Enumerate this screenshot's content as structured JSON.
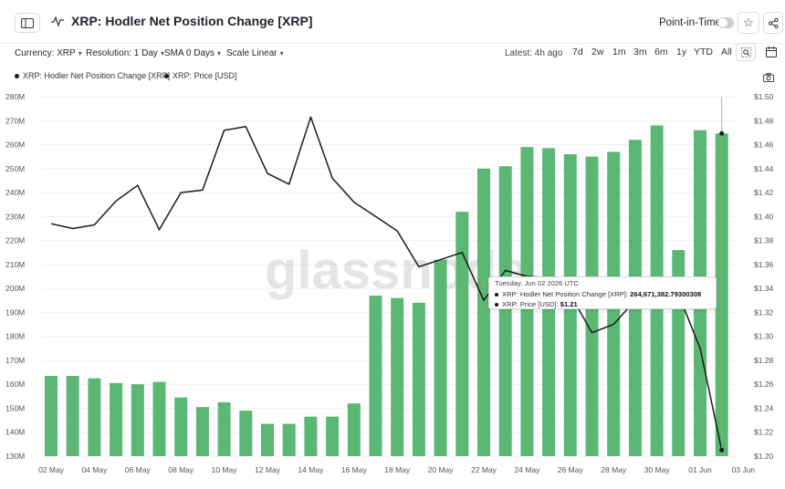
{
  "header": {
    "title": "XRP: Hodler Net Position Change [XRP]",
    "point_in_time_label": "Point-in-Time"
  },
  "toolbar": {
    "currency": "Currency: XRP",
    "resolution": "Resolution: 1 Day",
    "sma": "SMA 0 Days",
    "scale": "Scale Linear",
    "latest": "Latest: 4h ago",
    "ranges": [
      "7d",
      "2w",
      "1m",
      "3m",
      "6m",
      "1y",
      "YTD",
      "All"
    ]
  },
  "legend": {
    "items": [
      "XRP: Hodler Net Position Change [XRP]",
      "XRP: Price [USD]"
    ]
  },
  "watermark": "glassnode",
  "tooltip": {
    "date": "Tuesday, Jun 02 2026 UTC",
    "row1_label": "XRP: Hodler Net Position Change [XRP]: ",
    "row1_value": "264,671,382.79300308",
    "row2_label": "XRP: Price [USD]: ",
    "row2_value": "$1.21"
  },
  "colors": {
    "bar": "#5bb774",
    "line": "#1a1a1a",
    "grid": "#eef0f2"
  },
  "chart_data": {
    "type": "bar",
    "x": [
      "May 02",
      "May 03",
      "May 04",
      "May 05",
      "May 06",
      "May 07",
      "May 08",
      "May 09",
      "May 10",
      "May 11",
      "May 12",
      "May 13",
      "May 14",
      "May 15",
      "May 16",
      "May 17",
      "May 18",
      "May 19",
      "May 20",
      "May 21",
      "May 22",
      "May 23",
      "May 24",
      "May 25",
      "May 26",
      "May 27",
      "May 28",
      "May 29",
      "May 30",
      "May 31",
      "Jun 01",
      "Jun 02"
    ],
    "x_tick_labels": [
      "02 May",
      "04 May",
      "06 May",
      "08 May",
      "10 May",
      "12 May",
      "14 May",
      "16 May",
      "18 May",
      "20 May",
      "22 May",
      "24 May",
      "26 May",
      "28 May",
      "30 May",
      "01 Jun",
      "03 Jun"
    ],
    "series": [
      {
        "name": "XRP: Hodler Net Position Change [XRP]",
        "type": "bar",
        "axis": "left",
        "values": [
          163.5,
          163.5,
          162.5,
          160.5,
          160.0,
          161.0,
          154.5,
          150.5,
          152.5,
          149.0,
          143.5,
          143.5,
          146.5,
          146.5,
          152.0,
          197.0,
          196.0,
          194.0,
          212.0,
          232.0,
          250.0,
          251.0,
          259.0,
          258.5,
          256.0,
          255.0,
          257.0,
          262.0,
          268.0,
          216.0,
          266.0,
          264.671382793
        ]
      },
      {
        "name": "XRP: Price [USD]",
        "type": "line",
        "axis": "right",
        "values": [
          1.394,
          1.39,
          1.393,
          1.413,
          1.426,
          1.389,
          1.42,
          1.422,
          1.472,
          1.475,
          1.436,
          1.427,
          1.483,
          1.432,
          1.412,
          1.4,
          1.388,
          1.358,
          1.364,
          1.37,
          1.33,
          1.355,
          1.35,
          1.349,
          1.335,
          1.303,
          1.31,
          1.33,
          1.34,
          1.335,
          1.29,
          1.205
        ]
      }
    ],
    "left_axis": {
      "ylim": [
        130,
        280
      ],
      "ticks": [
        "130M",
        "140M",
        "150M",
        "160M",
        "170M",
        "180M",
        "190M",
        "200M",
        "210M",
        "220M",
        "230M",
        "240M",
        "250M",
        "260M",
        "270M",
        "280M"
      ]
    },
    "right_axis": {
      "ylim": [
        1.2,
        1.5
      ],
      "ticks": [
        "$1.20",
        "$1.22",
        "$1.24",
        "$1.26",
        "$1.28",
        "$1.30",
        "$1.32",
        "$1.34",
        "$1.36",
        "$1.38",
        "$1.40",
        "$1.42",
        "$1.44",
        "$1.46",
        "$1.48",
        "$1.50"
      ]
    },
    "grid": true
  }
}
